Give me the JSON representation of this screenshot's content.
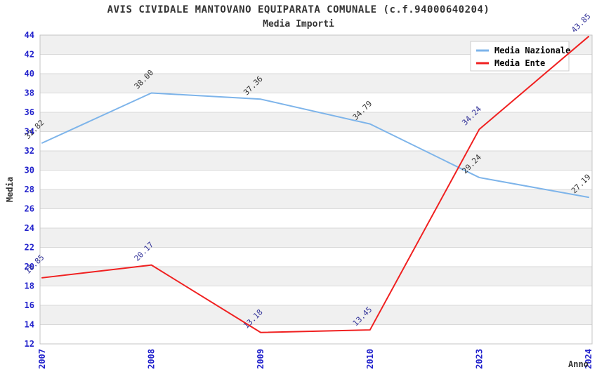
{
  "title": "AVIS CIVIDALE MANTOVANO EQUIPARATA COMUNALE (c.f.94000640204)",
  "subtitle": "Media Importi",
  "chart_data": {
    "type": "line",
    "title": "AVIS CIVIDALE MANTOVANO EQUIPARATA COMUNALE (c.f.94000640204)",
    "subtitle": "Media Importi",
    "xlabel": "Anno",
    "ylabel": "Media",
    "categories": [
      "2007",
      "2008",
      "2009",
      "2010",
      "2023",
      "2024"
    ],
    "series": [
      {
        "name": "Media Nazionale",
        "color": "#7db4ea",
        "label_color": "#333333",
        "values": [
          32.82,
          38.0,
          37.36,
          34.79,
          29.24,
          27.19
        ]
      },
      {
        "name": "Media Ente",
        "color": "#f02020",
        "label_color": "#333399",
        "values": [
          18.85,
          20.17,
          13.18,
          13.45,
          34.24,
          43.85
        ]
      }
    ],
    "ylim": [
      12,
      44
    ],
    "ytick_step": 2,
    "grid": true,
    "band_every_other_interval": true,
    "legend_position": "top-right",
    "label_format_decimals": 2,
    "colors": {
      "tick_label": "#2222cc",
      "axis_title": "#333333",
      "title": "#333333",
      "grid": "#d9d9d9",
      "band": "#f0f0f0",
      "plot_border": "#c4c4c4",
      "legend_border": "#cccccc",
      "legend_bg": "#ffffff",
      "legend_text": "#000000"
    }
  }
}
